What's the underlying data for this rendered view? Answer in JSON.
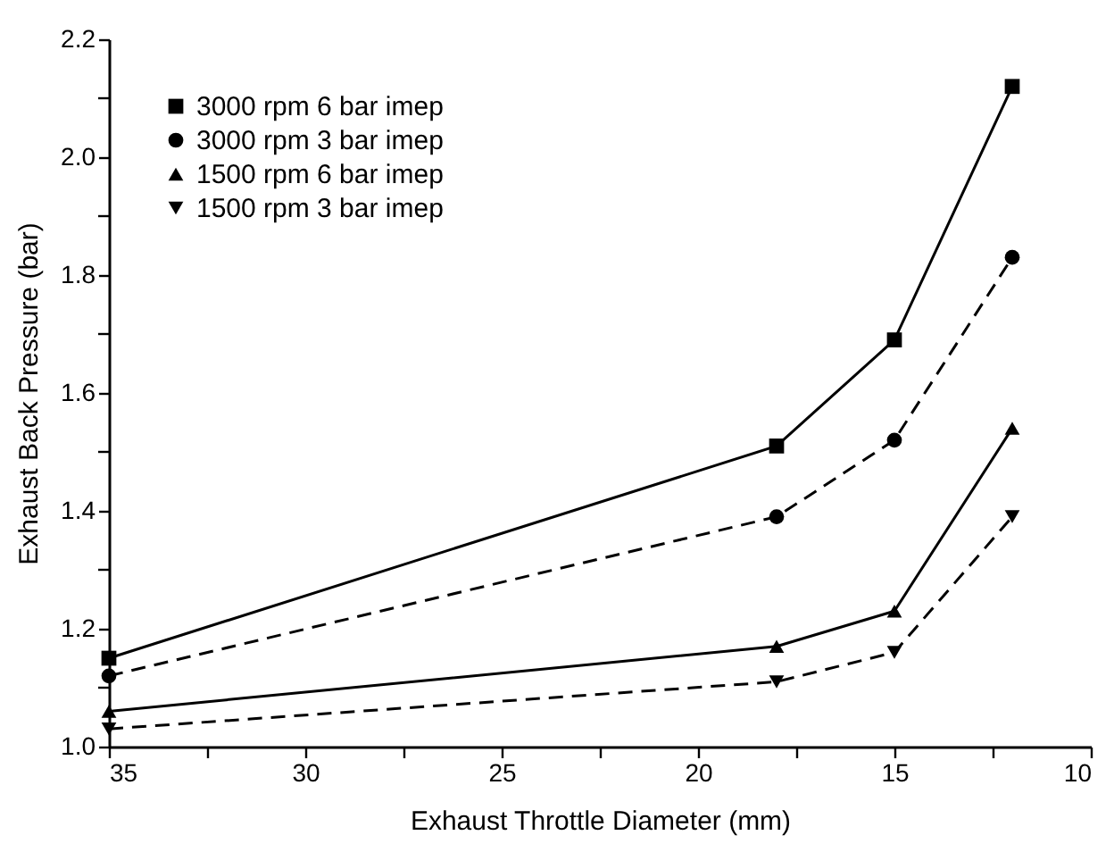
{
  "chart_data": {
    "type": "line",
    "xlabel": "Exhaust Throttle Diameter (mm)",
    "ylabel": "Exhaust Back Pressure (bar)",
    "x": [
      35,
      18,
      15,
      12
    ],
    "series": [
      {
        "name": "3000 rpm 6 bar imep",
        "color": "#000000",
        "marker": "square",
        "line_style": "solid",
        "values": [
          1.15,
          1.51,
          1.69,
          2.12
        ]
      },
      {
        "name": "3000 rpm 3 bar imep",
        "color": "#000000",
        "marker": "circle",
        "line_style": "dashed",
        "values": [
          1.12,
          1.39,
          1.52,
          1.83
        ]
      },
      {
        "name": "1500 rpm 6 bar imep",
        "color": "#000000",
        "marker": "triangle",
        "line_style": "solid",
        "values": [
          1.06,
          1.17,
          1.23,
          1.54
        ]
      },
      {
        "name": "1500 rpm 3 bar imep",
        "color": "#000000",
        "marker": "triangle-down",
        "line_style": "dashed",
        "values": [
          1.03,
          1.11,
          1.16,
          1.39
        ]
      }
    ],
    "xlim": [
      35,
      10
    ],
    "xticks": [
      35,
      {
        "value": 32.5,
        "label": null
      },
      30,
      {
        "value": 27.5,
        "label": null
      },
      25,
      {
        "value": 22.5,
        "label": null
      },
      20,
      {
        "value": 17.5,
        "label": null
      },
      15,
      {
        "value": 12.5,
        "label": null
      },
      10
    ],
    "ylim": [
      1.0,
      2.2
    ],
    "yticks": [
      {
        "value": 1.0,
        "label": "1.0"
      },
      {
        "value": 1.1,
        "label": null
      },
      {
        "value": 1.2,
        "label": "1.2"
      },
      {
        "value": 1.3,
        "label": null
      },
      {
        "value": 1.4,
        "label": "1.4"
      },
      {
        "value": 1.5,
        "label": null
      },
      {
        "value": 1.6,
        "label": "1.6"
      },
      {
        "value": 1.7,
        "label": null
      },
      {
        "value": 1.8,
        "label": "1.8"
      },
      {
        "value": 1.9,
        "label": null
      },
      {
        "value": 2.0,
        "label": "2.0"
      },
      {
        "value": 2.1,
        "label": null
      },
      {
        "value": 2.2,
        "label": "2.2"
      }
    ],
    "grid": false,
    "legend": "top left"
  }
}
